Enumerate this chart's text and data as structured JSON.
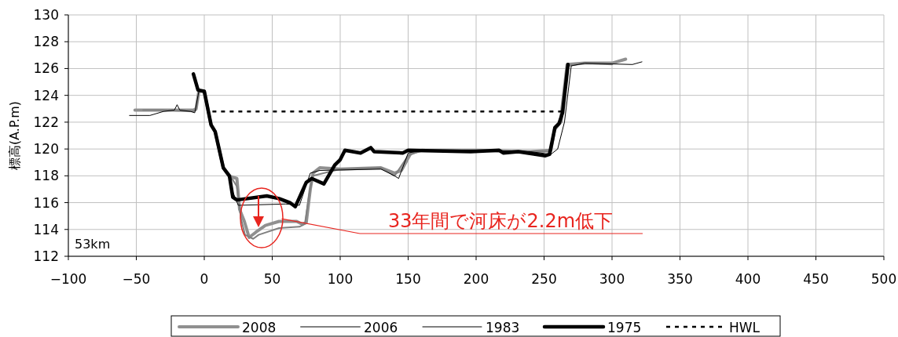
{
  "chart_data": {
    "type": "line",
    "ylabel": "標高(A.P.m)",
    "xlim": [
      -100,
      500
    ],
    "xticks": [
      {
        "value": -100,
        "label": "−100"
      },
      {
        "value": -50,
        "label": "−50"
      },
      0,
      50,
      100,
      150,
      200,
      250,
      300,
      350,
      400,
      450,
      500
    ],
    "ylim": [
      112,
      130
    ],
    "yticks": [
      112,
      114,
      116,
      118,
      120,
      122,
      124,
      126,
      128,
      130
    ],
    "grid": true,
    "legend": "bottom",
    "annotations": [
      "53km",
      {
        "text": "33年間で河床が2.2m低下",
        "x": 57,
        "y": 114.8
      }
    ],
    "series": [
      {
        "name": "2008",
        "color": "#909090",
        "x": [
          -51,
          -30,
          -8,
          -6,
          -4,
          0,
          5,
          8,
          14,
          18,
          21,
          24,
          26,
          29.5,
          33,
          38,
          45,
          55,
          68,
          72,
          75,
          78,
          80,
          85,
          100,
          130,
          140,
          145,
          152,
          160,
          200,
          240,
          255,
          258,
          262,
          267,
          280,
          300,
          310
        ],
        "values": [
          122.9,
          122.9,
          122.9,
          123.0,
          124.3,
          124.3,
          121.8,
          121.3,
          118.6,
          118.0,
          117.9,
          117.8,
          115.5,
          114.6,
          113.4,
          113.8,
          114.3,
          114.6,
          114.6,
          114.4,
          114.5,
          117.0,
          118.2,
          118.6,
          118.5,
          118.6,
          118.2,
          118.4,
          119.7,
          119.9,
          119.9,
          119.8,
          119.9,
          121.6,
          122.0,
          126.3,
          126.4,
          126.4,
          126.7
        ]
      },
      {
        "name": "2006",
        "color": "#808080",
        "x": [
          -45,
          -30,
          -8,
          -6,
          -4,
          0,
          5,
          8,
          14,
          18,
          21,
          24,
          27,
          30,
          36,
          40,
          55,
          70,
          74,
          77,
          80,
          100,
          130,
          140,
          150,
          160,
          200,
          240,
          255,
          258,
          263,
          268,
          280,
          300
        ],
        "values": [
          122.9,
          122.9,
          122.8,
          122.9,
          124.3,
          124.3,
          121.8,
          121.3,
          118.6,
          118.0,
          117.7,
          117.2,
          114.8,
          113.6,
          113.3,
          113.6,
          114.1,
          114.2,
          114.4,
          116.5,
          118.0,
          118.5,
          118.6,
          118.0,
          119.5,
          119.9,
          119.9,
          119.8,
          119.8,
          121.4,
          122.0,
          126.2,
          126.4,
          126.3
        ]
      },
      {
        "name": "1983",
        "color": "#000000",
        "x": [
          -55,
          -40,
          -30,
          -22,
          -20,
          -18,
          -10,
          -7,
          -4,
          0,
          5,
          8,
          14,
          18,
          21,
          25,
          60,
          70,
          78,
          85,
          130,
          140,
          143,
          150,
          160,
          200,
          240,
          255,
          260,
          265,
          270,
          280,
          315,
          322
        ],
        "values": [
          122.5,
          122.5,
          122.8,
          122.9,
          123.3,
          122.9,
          122.8,
          122.7,
          124.3,
          124.3,
          121.8,
          121.3,
          118.6,
          118.0,
          116.8,
          115.8,
          115.9,
          115.8,
          118.2,
          118.4,
          118.5,
          118.0,
          117.8,
          119.7,
          119.9,
          119.9,
          119.8,
          119.6,
          120.0,
          122.0,
          126.2,
          126.4,
          126.3,
          126.5
        ]
      },
      {
        "name": "1975",
        "color": "#000000",
        "x": [
          -8,
          -4.6,
          0,
          5,
          8,
          14,
          18.5,
          21,
          24,
          46,
          55,
          63,
          67,
          75,
          79,
          88,
          96,
          100,
          103.5,
          115,
          122.5,
          125,
          146,
          150,
          196,
          217,
          220,
          231,
          251,
          254,
          258,
          261,
          263.6,
          267.6
        ],
        "values": [
          125.6,
          124.4,
          124.3,
          121.8,
          121.3,
          118.6,
          118.0,
          116.4,
          116.2,
          116.5,
          116.3,
          116.0,
          115.7,
          117.5,
          117.8,
          117.4,
          118.8,
          119.2,
          119.9,
          119.7,
          120.1,
          119.8,
          119.7,
          119.9,
          119.8,
          119.9,
          119.7,
          119.8,
          119.5,
          119.6,
          121.6,
          121.9,
          122.7,
          126.3
        ]
      },
      {
        "name": "HWL",
        "color": "#000000",
        "line_style": "dotted",
        "x": [
          6,
          264
        ],
        "values": [
          122.8,
          122.8
        ]
      }
    ]
  }
}
